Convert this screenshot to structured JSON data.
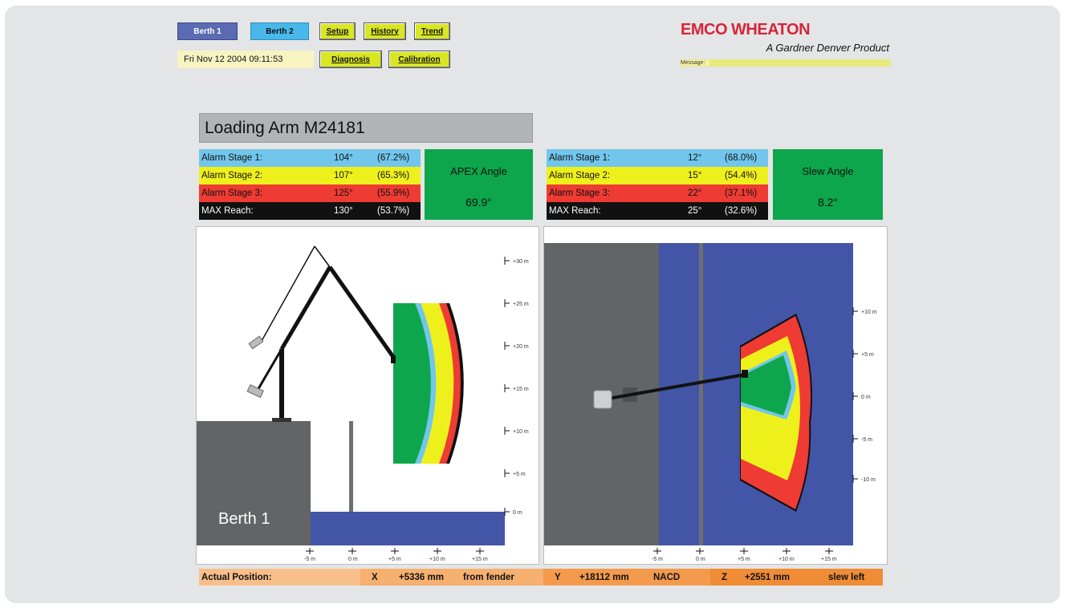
{
  "nav": {
    "berth1": "Berth 1",
    "berth2": "Berth 2",
    "setup": "Setup",
    "history": "History",
    "trend": "Trend",
    "diagnosis": "Diagnosis",
    "calibration": "Calibration",
    "datetime": "Fri Nov 12 2004  09:11:53"
  },
  "brand": {
    "logo": "EMCO WHEATON",
    "tagline": "A Gardner Denver Product",
    "message_label": "Message:"
  },
  "title": "Loading Arm M24181",
  "apex": {
    "rows": [
      {
        "label": "Alarm Stage 1:",
        "deg": "104°",
        "pct": "(67.2%)"
      },
      {
        "label": "Alarm Stage 2:",
        "deg": "107°",
        "pct": "(65.3%)"
      },
      {
        "label": "Alarm Stage 3:",
        "deg": "125°",
        "pct": "(55.9%)"
      },
      {
        "label": "MAX Reach:",
        "deg": "130°",
        "pct": "(53.7%)"
      }
    ],
    "angle_title": "APEX Angle",
    "angle_value": "69.9°"
  },
  "slew": {
    "rows": [
      {
        "label": "Alarm Stage 1:",
        "deg": "12°",
        "pct": "(68.0%)"
      },
      {
        "label": "Alarm Stage 2:",
        "deg": "15°",
        "pct": "(54.4%)"
      },
      {
        "label": "Alarm Stage 3:",
        "deg": "22°",
        "pct": "(37.1%)"
      },
      {
        "label": "MAX Reach:",
        "deg": "25°",
        "pct": "(32.6%)"
      }
    ],
    "angle_title": "Slew Angle",
    "angle_value": "8.2°"
  },
  "side_view": {
    "berth_label": "Berth 1",
    "y_ticks": [
      "+30 m",
      "+25 m",
      "+20 m",
      "+15 m",
      "+10 m",
      "+5 m",
      "0 m"
    ],
    "x_ticks": [
      "-5 m",
      "0 m",
      "+5 m",
      "+10 m",
      "+15 m"
    ]
  },
  "top_view": {
    "y_ticks": [
      "+10 m",
      "+5 m",
      "0 m",
      "-5 m",
      "-10 m"
    ],
    "x_ticks": [
      "-5 m",
      "0 m",
      "+5 m",
      "+10 m",
      "+15 m"
    ]
  },
  "position": {
    "label": "Actual Position:",
    "x_label": "X",
    "x_value": "+5336 mm",
    "x_ref": "from fender",
    "y_label": "Y",
    "y_value": "+18112 mm",
    "y_ref": "NACD",
    "z_label": "Z",
    "z_value": "+2551 mm",
    "z_ref": "slew left"
  },
  "colors": {
    "stage1": "#72c6ec",
    "stage2": "#eef01c",
    "stage3": "#ee3b33",
    "max": "#111111",
    "ok": "#0da64c",
    "water": "#4355a6",
    "quay": "#636466"
  }
}
